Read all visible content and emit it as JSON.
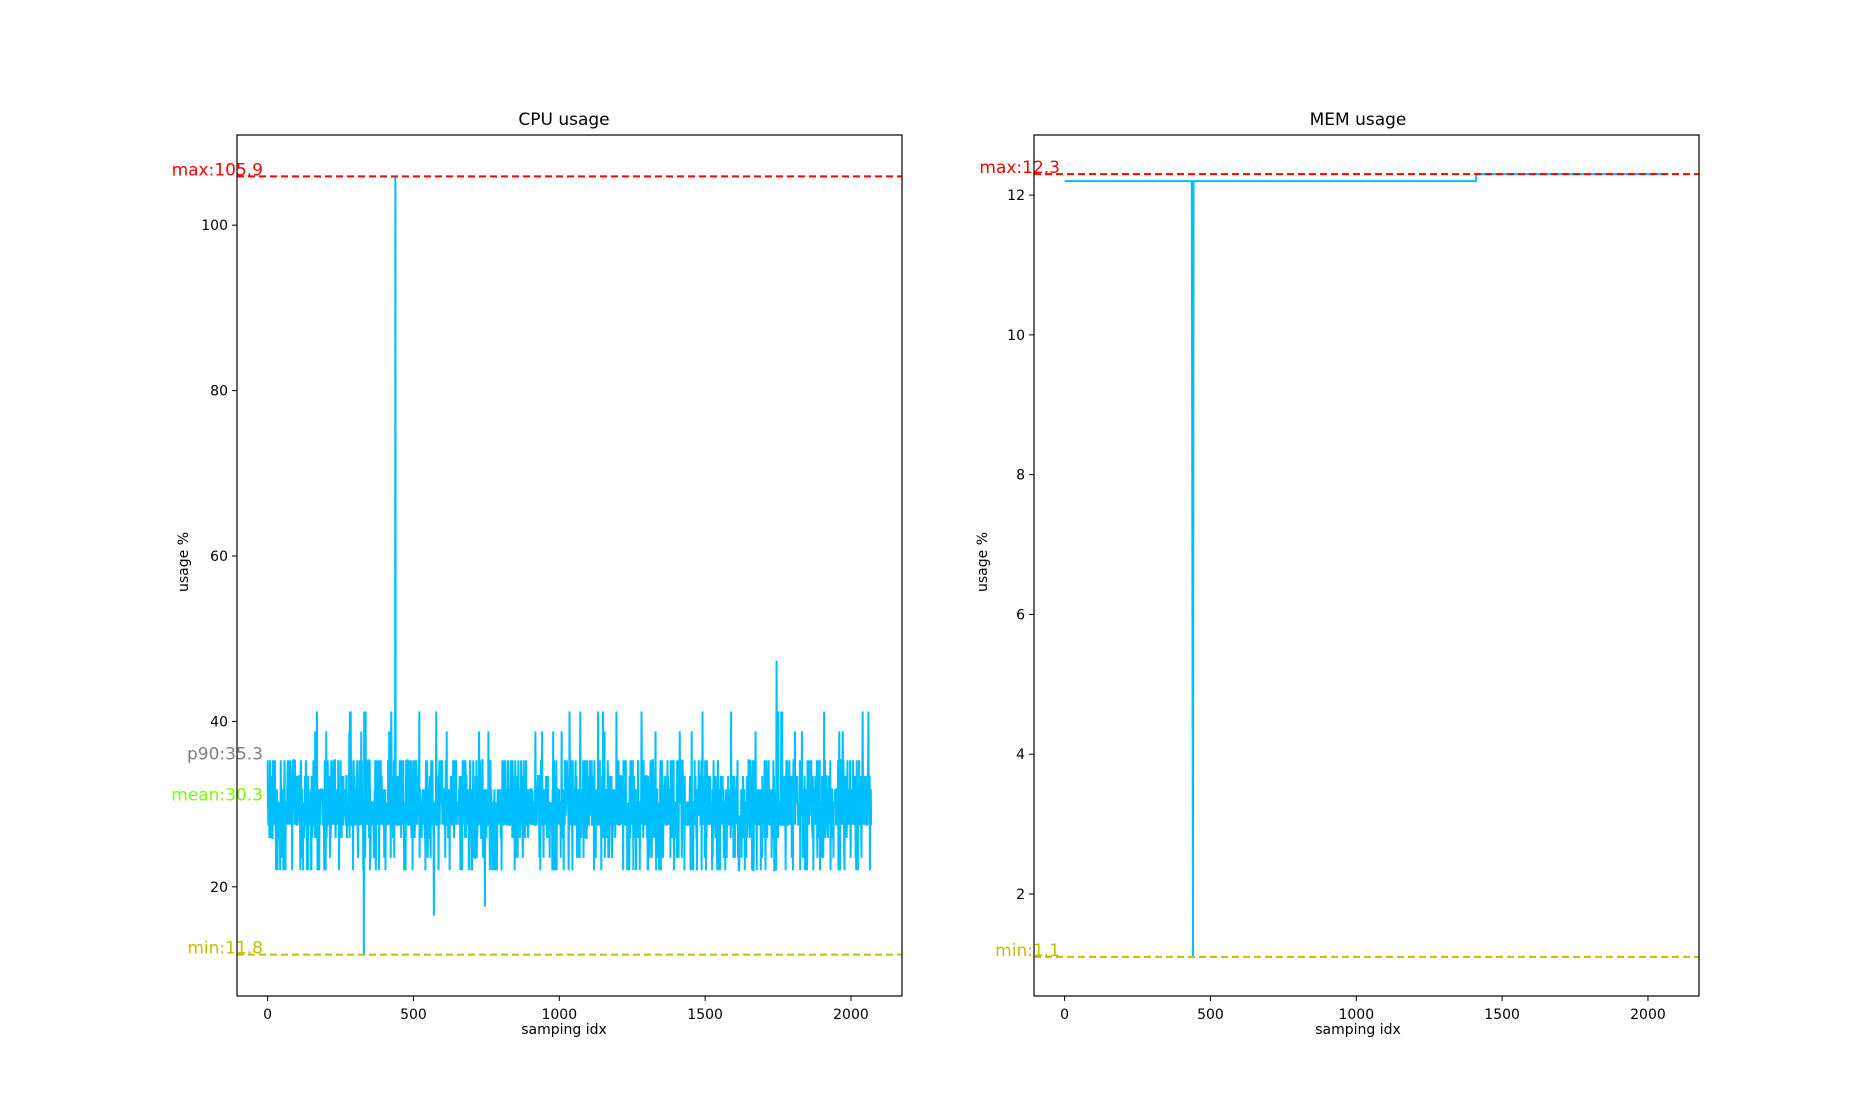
{
  "chart_data": [
    {
      "type": "line",
      "title": "CPU usage",
      "xlabel": "samping idx",
      "ylabel": "usage %",
      "xlim": [
        -105,
        2175
      ],
      "ylim": [
        6.8,
        110.9
      ],
      "xticks": [
        0,
        500,
        1000,
        1500,
        2000
      ],
      "yticks": [
        20,
        40,
        60,
        80,
        100
      ],
      "series": [
        {
          "color": "#00bfff",
          "n_points": 2070,
          "typical_range": [
            22,
            41
          ],
          "peaks": [
            {
              "x": 438,
              "y": 105.9
            },
            {
              "x": 1745,
              "y": 47.3
            }
          ],
          "dips": [
            {
              "x": 330,
              "y": 11.8
            },
            {
              "x": 570,
              "y": 16.5
            },
            {
              "x": 745,
              "y": 17.6
            }
          ]
        }
      ],
      "reference_lines": [
        {
          "label": "max:105.9",
          "value": 105.9,
          "color": "#ff0000",
          "style": "dashed",
          "line": true
        },
        {
          "label": "p90:35.3",
          "value": 35.3,
          "color": "#808080",
          "style": "none",
          "line": false
        },
        {
          "label": "mean:30.3",
          "value": 30.3,
          "color": "#7cfc00",
          "style": "none",
          "line": false
        },
        {
          "label": "min:11.8",
          "value": 11.8,
          "color": "#bfbf00",
          "style": "dashed",
          "line": true
        }
      ]
    },
    {
      "type": "line",
      "title": "MEM usage",
      "xlabel": "samping idx",
      "ylabel": "usage %",
      "xlim": [
        -105,
        2175
      ],
      "ylim": [
        0.54,
        12.86
      ],
      "xticks": [
        0,
        500,
        1000,
        1500,
        2000
      ],
      "yticks": [
        2,
        4,
        6,
        8,
        10,
        12
      ],
      "series": [
        {
          "color": "#00bfff",
          "x": [
            0,
            436,
            440,
            442,
            446,
            1410,
            1412,
            2070
          ],
          "y": [
            12.2,
            12.2,
            1.1,
            12.2,
            12.2,
            12.2,
            12.3,
            12.3
          ]
        }
      ],
      "reference_lines": [
        {
          "label": "max:12.3",
          "value": 12.3,
          "color": "#ff0000",
          "style": "dashed",
          "line": true
        },
        {
          "label": "min:1.1",
          "value": 1.1,
          "color": "#bfbf00",
          "style": "dashed",
          "line": true
        }
      ]
    }
  ]
}
